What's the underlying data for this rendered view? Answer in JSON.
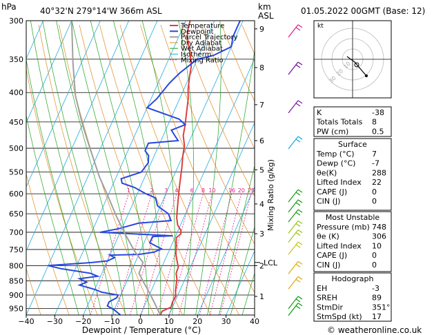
{
  "header": {
    "location": "40°32'N  279°14'W  366m  ASL",
    "datetime": "01.05.2022  00GMT  (Base: 12)",
    "unit_hpa": "hPa",
    "unit_km": "km",
    "unit_asl": "ASL"
  },
  "footer": {
    "copyright": "© weatheronline.co.uk"
  },
  "chart_data": {
    "type": "line",
    "title": "",
    "xlabel": "Dewpoint / Temperature (°C)",
    "ylabel": "hPa",
    "mixing_ratio_axis_label": "Mixing Ratio (g/kg)",
    "xlim": [
      -40,
      40
    ],
    "ylim": [
      975,
      300
    ],
    "x_ticks": [
      "−40",
      "−30",
      "−20",
      "−10",
      "0",
      "10",
      "20",
      "30",
      "40"
    ],
    "pressure_ticks": [
      300,
      350,
      400,
      450,
      500,
      550,
      600,
      650,
      700,
      750,
      800,
      850,
      900,
      950
    ],
    "km_ticks": [
      {
        "label": "9",
        "p": 310
      },
      {
        "label": "8",
        "p": 362
      },
      {
        "label": "7",
        "p": 420
      },
      {
        "label": "6",
        "p": 485
      },
      {
        "label": "5",
        "p": 545
      },
      {
        "label": "4",
        "p": 625
      },
      {
        "label": "3",
        "p": 704
      },
      {
        "label": "2",
        "p": 800
      },
      {
        "label": "1",
        "p": 905
      }
    ],
    "lcl": {
      "label": "LCL",
      "p": 790
    },
    "mixing_ratio_labels": [
      "1",
      "2",
      "3",
      "4",
      "6",
      "8",
      "10",
      "16",
      "20",
      "25"
    ],
    "legend": [
      "Temperature",
      "Dewpoint",
      "Parcel Trajectory",
      "Dry Adiabat",
      "Wet Adiabat",
      "Isotherm",
      "Mixing Ratio"
    ],
    "legend_colors": [
      "#e03c3c",
      "#2846e0",
      "#a0a0a0",
      "#e08a1e",
      "#1ea01e",
      "#1eaae0",
      "#e01e8c"
    ],
    "series": [
      {
        "name": "Temperature",
        "points": [
          [
            7,
            975
          ],
          [
            7,
            960
          ],
          [
            9.5,
            945
          ],
          [
            9.2,
            925
          ],
          [
            9.5,
            905
          ],
          [
            8.5,
            885
          ],
          [
            7.7,
            860
          ],
          [
            7.2,
            845
          ],
          [
            6.0,
            825
          ],
          [
            5.8,
            805
          ],
          [
            4.4,
            785
          ],
          [
            3.0,
            765
          ],
          [
            2.0,
            745
          ],
          [
            1.0,
            725
          ],
          [
            0.5,
            715
          ],
          [
            1.5,
            705
          ],
          [
            1.0,
            695
          ],
          [
            -1.0,
            680
          ],
          [
            -2.5,
            660
          ],
          [
            -3.5,
            640
          ],
          [
            -4.5,
            620
          ],
          [
            -5.5,
            600
          ],
          [
            -6.5,
            580
          ],
          [
            -7.5,
            560
          ],
          [
            -8.5,
            540
          ],
          [
            -10,
            515
          ],
          [
            -11,
            495
          ],
          [
            -13,
            475
          ],
          [
            -14,
            455
          ],
          [
            -15,
            440
          ],
          [
            -17,
            410
          ],
          [
            -18.5,
            395
          ],
          [
            -20,
            375
          ],
          [
            -21,
            360
          ],
          [
            -23,
            345
          ],
          [
            -24.5,
            335
          ],
          [
            -27,
            320
          ],
          [
            -28,
            310
          ],
          [
            -28.5,
            300
          ]
        ]
      },
      {
        "name": "Dewpoint",
        "points": [
          [
            -7,
            975
          ],
          [
            -10,
            955
          ],
          [
            -13,
            940
          ],
          [
            -13,
            925
          ],
          [
            -11,
            910
          ],
          [
            -11,
            900
          ],
          [
            -17,
            890
          ],
          [
            -20,
            880
          ],
          [
            -26,
            865
          ],
          [
            -24,
            855
          ],
          [
            -27,
            843
          ],
          [
            -21,
            835
          ],
          [
            -24,
            825
          ],
          [
            -35,
            810
          ],
          [
            -40,
            800
          ],
          [
            -33,
            795
          ],
          [
            -25,
            790
          ],
          [
            -20,
            785
          ],
          [
            -18,
            775
          ],
          [
            -20,
            767
          ],
          [
            -10,
            765
          ],
          [
            -5,
            758
          ],
          [
            -3,
            748
          ],
          [
            -8,
            730
          ],
          [
            -8,
            712
          ],
          [
            -1,
            710
          ],
          [
            -14,
            705
          ],
          [
            -27,
            700
          ],
          [
            -21,
            690
          ],
          [
            -15,
            675
          ],
          [
            -4,
            668
          ],
          [
            -6,
            650
          ],
          [
            -11,
            630
          ],
          [
            -13,
            610
          ],
          [
            -17,
            600
          ],
          [
            -22,
            585
          ],
          [
            -27,
            575
          ],
          [
            -28,
            565
          ],
          [
            -22,
            550
          ],
          [
            -21,
            530
          ],
          [
            -22,
            515
          ],
          [
            -24,
            505
          ],
          [
            -24,
            490
          ],
          [
            -14,
            485
          ],
          [
            -16,
            475
          ],
          [
            -18,
            465
          ],
          [
            -14,
            455
          ],
          [
            -17,
            445
          ],
          [
            -30,
            425
          ],
          [
            -28,
            410
          ],
          [
            -26,
            385
          ],
          [
            -24,
            370
          ],
          [
            -20,
            350
          ],
          [
            -15,
            345
          ],
          [
            -10,
            333
          ],
          [
            -11,
            320
          ],
          [
            -11,
            310
          ],
          [
            -11,
            300
          ]
        ]
      },
      {
        "name": "Parcel Trajectory",
        "points": [
          [
            7,
            975
          ],
          [
            0,
            895
          ],
          [
            -4,
            855
          ],
          [
            -7,
            825
          ],
          [
            -7.3,
            790
          ],
          [
            -12,
            755
          ],
          [
            -18,
            705
          ],
          [
            -24,
            655
          ],
          [
            -30,
            605
          ],
          [
            -36,
            560
          ],
          [
            -43,
            505
          ],
          [
            -50,
            455
          ],
          [
            -57,
            405
          ],
          [
            -63,
            355
          ],
          [
            -70,
            300
          ]
        ]
      }
    ]
  },
  "hodograph": {
    "label": "kt",
    "rings": [
      "10",
      "20",
      "30"
    ]
  },
  "indices": {
    "rows": [
      {
        "label": "K",
        "value": "-38"
      },
      {
        "label": "Totals Totals",
        "value": "8"
      },
      {
        "label": "PW (cm)",
        "value": "0.5"
      }
    ]
  },
  "surface": {
    "title": "Surface",
    "rows": [
      {
        "label": "Temp (°C)",
        "value": "7"
      },
      {
        "label": "Dewp (°C)",
        "value": "-7"
      },
      {
        "label": "θe(K)",
        "value": "288"
      },
      {
        "label": "Lifted Index",
        "value": "22"
      },
      {
        "label": "CAPE (J)",
        "value": "0"
      },
      {
        "label": "CIN (J)",
        "value": "0"
      }
    ]
  },
  "most_unstable": {
    "title": "Most Unstable",
    "rows": [
      {
        "label": "Pressure (mb)",
        "value": "748"
      },
      {
        "label": "θe (K)",
        "value": "306"
      },
      {
        "label": "Lifted Index",
        "value": "10"
      },
      {
        "label": "CAPE (J)",
        "value": "0"
      },
      {
        "label": "CIN (J)",
        "value": "0"
      }
    ]
  },
  "hodograph_table": {
    "title": "Hodograph",
    "rows": [
      {
        "label": "EH",
        "value": "-3"
      },
      {
        "label": "SREH",
        "value": "89"
      },
      {
        "label": "StmDir",
        "value": "351°"
      },
      {
        "label": "StmSpd (kt)",
        "value": "17"
      }
    ]
  }
}
